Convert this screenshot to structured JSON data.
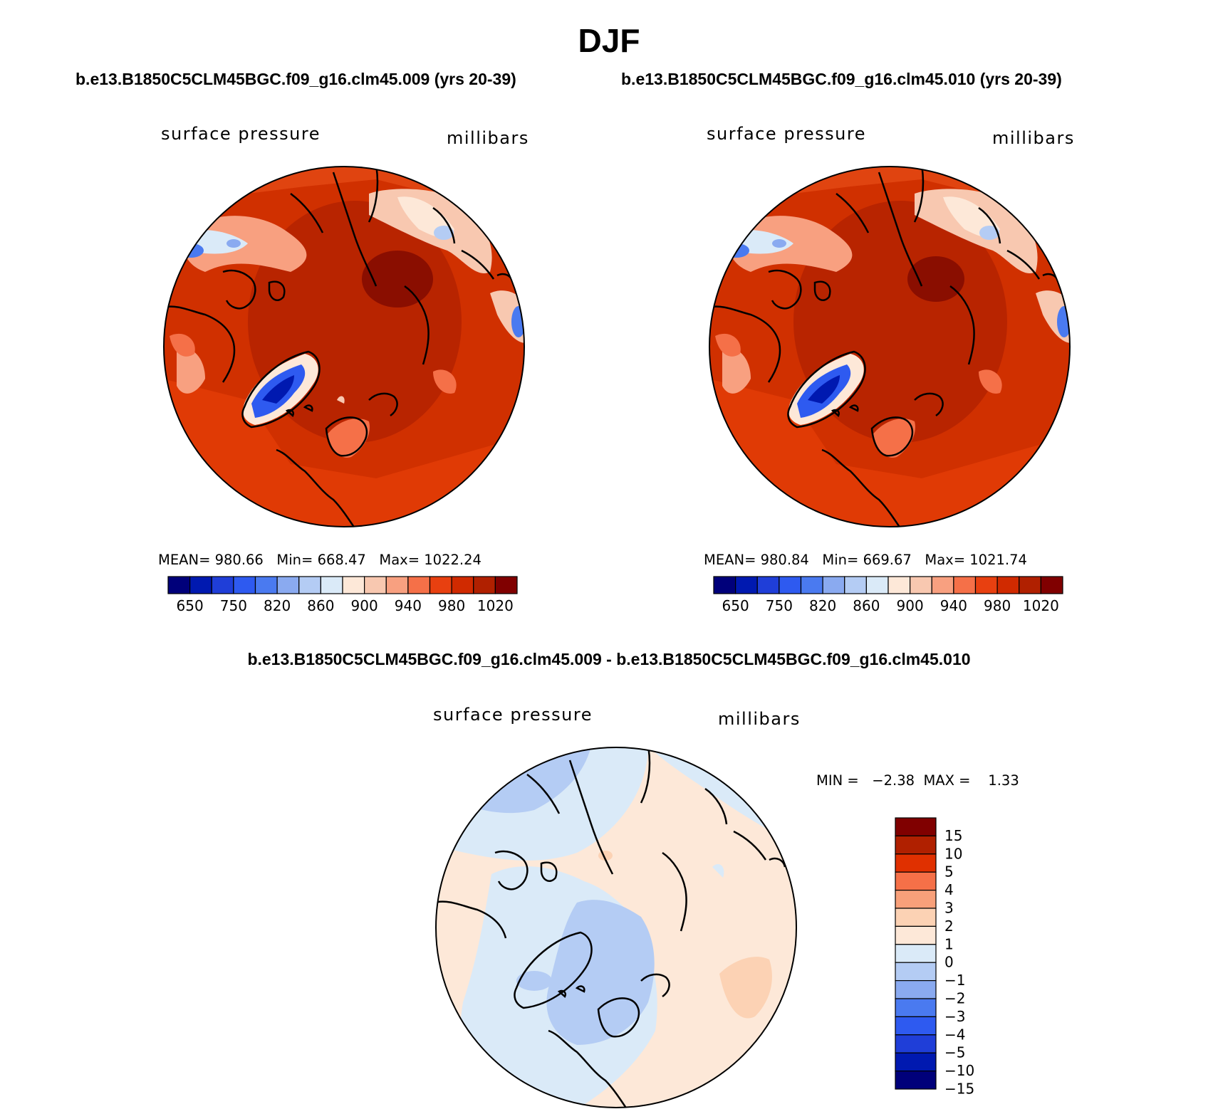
{
  "title": "DJF",
  "case_titles": {
    "left": "b.e13.B1850C5CLM45BGC.f09_g16.clm45.009 (yrs 20-39)",
    "right": "b.e13.B1850C5CLM45BGC.f09_g16.clm45.010 (yrs 20-39)"
  },
  "diff_title": "b.e13.B1850C5CLM45BGC.f09_g16.clm45.009 - b.e13.B1850C5CLM45BGC.f09_g16.clm45.010",
  "panels": [
    {
      "variable": "surface pressure",
      "units": "millibars",
      "stats_text": "MEAN= 980.66   Min= 668.47   Max= 1022.24"
    },
    {
      "variable": "surface pressure",
      "units": "millibars",
      "stats_text": "MEAN= 980.84   Min= 669.67   Max= 1021.74"
    }
  ],
  "diff_panel": {
    "variable": "surface pressure",
    "units": "millibars",
    "stats_text": "MIN =   −2.38  MAX =    1.33"
  },
  "colorbar_abs": {
    "colors": [
      "#00007a",
      "#0019b0",
      "#1f3ed8",
      "#2e5af0",
      "#4a7af0",
      "#8aaaf0",
      "#b4ccf4",
      "#daeaf8",
      "#fde8d8",
      "#f8c8b0",
      "#f8a080",
      "#f57048",
      "#e84010",
      "#d02a00",
      "#b02000",
      "#800000"
    ],
    "tick_labels": [
      "650",
      "750",
      "820",
      "860",
      "900",
      "940",
      "980",
      "1020"
    ]
  },
  "colorbar_diff": {
    "colors": [
      "#800000",
      "#b02000",
      "#e03000",
      "#f57048",
      "#f8a07a",
      "#fcd2b4",
      "#fde8d8",
      "#daeaf8",
      "#b4ccf4",
      "#8aaaf0",
      "#4a7af0",
      "#2e5af0",
      "#1f3ed8",
      "#0019b0",
      "#00007a"
    ],
    "tick_labels": [
      "15",
      "10",
      "5",
      "4",
      "3",
      "2",
      "1",
      "0",
      "−1",
      "−2",
      "−3",
      "−4",
      "−5",
      "−10",
      "−15"
    ]
  }
}
